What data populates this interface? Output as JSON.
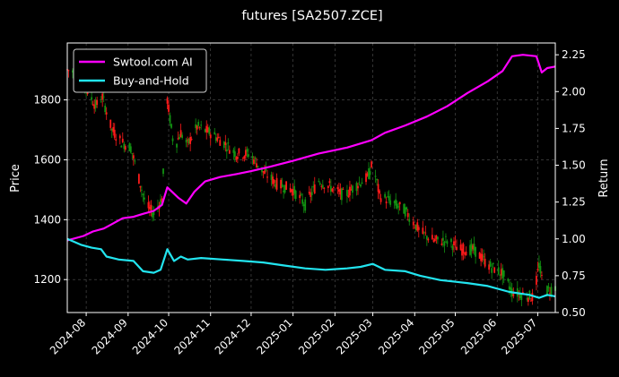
{
  "chart_data": {
    "type": "line",
    "title": "futures [SA2507.ZCE]",
    "xlabel": "",
    "ylabel_left": "Price",
    "ylabel_right": "Return",
    "x_range": [
      "2024-07-18",
      "2025-07-14"
    ],
    "x_ticks": [
      "2024-08",
      "2024-09",
      "2024-10",
      "2024-11",
      "2024-12",
      "2025-01",
      "2025-02",
      "2025-03",
      "2025-04",
      "2025-05",
      "2025-06",
      "2025-07"
    ],
    "ylim_left": [
      1090,
      1990
    ],
    "yticks_left": [
      1200,
      1400,
      1600,
      1800
    ],
    "ylim_right": [
      0.5,
      2.33
    ],
    "yticks_right": [
      0.5,
      0.75,
      1.0,
      1.25,
      1.5,
      1.75,
      2.0,
      2.25
    ],
    "grid": true,
    "legend_position": "top-left",
    "colors": {
      "strategy": "#ff00ff",
      "buyhold": "#22e5f0",
      "candle_up": "#ff1a1a",
      "candle_down": "#129312",
      "grid": "#555555",
      "background": "#000000"
    },
    "series": [
      {
        "name": "Swtool.com AI",
        "axis": "right",
        "points": [
          [
            "2024-07-18",
            0.99
          ],
          [
            "2024-07-30",
            1.02
          ],
          [
            "2024-08-06",
            1.05
          ],
          [
            "2024-08-14",
            1.07
          ],
          [
            "2024-08-20",
            1.1
          ],
          [
            "2024-08-28",
            1.14
          ],
          [
            "2024-09-05",
            1.15
          ],
          [
            "2024-09-12",
            1.17
          ],
          [
            "2024-09-20",
            1.19
          ],
          [
            "2024-09-26",
            1.23
          ],
          [
            "2024-09-30",
            1.35
          ],
          [
            "2024-10-08",
            1.28
          ],
          [
            "2024-10-14",
            1.24
          ],
          [
            "2024-10-20",
            1.32
          ],
          [
            "2024-10-28",
            1.39
          ],
          [
            "2024-11-08",
            1.42
          ],
          [
            "2024-11-20",
            1.44
          ],
          [
            "2024-12-01",
            1.46
          ],
          [
            "2024-12-15",
            1.49
          ],
          [
            "2025-01-01",
            1.53
          ],
          [
            "2025-01-20",
            1.58
          ],
          [
            "2025-02-10",
            1.62
          ],
          [
            "2025-02-28",
            1.67
          ],
          [
            "2025-03-10",
            1.72
          ],
          [
            "2025-03-25",
            1.77
          ],
          [
            "2025-04-10",
            1.83
          ],
          [
            "2025-04-25",
            1.9
          ],
          [
            "2025-05-10",
            1.99
          ],
          [
            "2025-05-25",
            2.07
          ],
          [
            "2025-06-05",
            2.14
          ],
          [
            "2025-06-12",
            2.24
          ],
          [
            "2025-06-20",
            2.25
          ],
          [
            "2025-06-30",
            2.24
          ],
          [
            "2025-07-04",
            2.13
          ],
          [
            "2025-07-08",
            2.16
          ],
          [
            "2025-07-14",
            2.17
          ]
        ]
      },
      {
        "name": "Buy-and-Hold",
        "axis": "right",
        "points": [
          [
            "2024-07-18",
            1.0
          ],
          [
            "2024-07-28",
            0.96
          ],
          [
            "2024-08-05",
            0.94
          ],
          [
            "2024-08-12",
            0.93
          ],
          [
            "2024-08-16",
            0.88
          ],
          [
            "2024-08-25",
            0.86
          ],
          [
            "2024-09-05",
            0.85
          ],
          [
            "2024-09-12",
            0.78
          ],
          [
            "2024-09-20",
            0.77
          ],
          [
            "2024-09-25",
            0.79
          ],
          [
            "2024-09-30",
            0.93
          ],
          [
            "2024-10-05",
            0.85
          ],
          [
            "2024-10-10",
            0.88
          ],
          [
            "2024-10-15",
            0.86
          ],
          [
            "2024-10-25",
            0.87
          ],
          [
            "2024-11-10",
            0.86
          ],
          [
            "2024-11-25",
            0.85
          ],
          [
            "2024-12-10",
            0.84
          ],
          [
            "2024-12-25",
            0.82
          ],
          [
            "2025-01-10",
            0.8
          ],
          [
            "2025-01-25",
            0.79
          ],
          [
            "2025-02-10",
            0.8
          ],
          [
            "2025-02-20",
            0.81
          ],
          [
            "2025-03-01",
            0.83
          ],
          [
            "2025-03-10",
            0.79
          ],
          [
            "2025-03-25",
            0.78
          ],
          [
            "2025-04-05",
            0.75
          ],
          [
            "2025-04-20",
            0.72
          ],
          [
            "2025-05-10",
            0.7
          ],
          [
            "2025-05-25",
            0.68
          ],
          [
            "2025-06-10",
            0.64
          ],
          [
            "2025-06-25",
            0.62
          ],
          [
            "2025-07-02",
            0.6
          ],
          [
            "2025-07-08",
            0.62
          ],
          [
            "2025-07-14",
            0.61
          ]
        ]
      },
      {
        "name": "Price",
        "axis": "left",
        "type": "candlestick",
        "points": [
          [
            "2024-07-18",
            1900
          ],
          [
            "2024-07-26",
            1890
          ],
          [
            "2024-08-02",
            1830
          ],
          [
            "2024-08-08",
            1780
          ],
          [
            "2024-08-13",
            1810
          ],
          [
            "2024-08-20",
            1700
          ],
          [
            "2024-08-27",
            1660
          ],
          [
            "2024-09-03",
            1640
          ],
          [
            "2024-09-10",
            1520
          ],
          [
            "2024-09-14",
            1450
          ],
          [
            "2024-09-20",
            1420
          ],
          [
            "2024-09-26",
            1470
          ],
          [
            "2024-09-30",
            1800
          ],
          [
            "2024-10-05",
            1640
          ],
          [
            "2024-10-10",
            1690
          ],
          [
            "2024-10-15",
            1650
          ],
          [
            "2024-10-22",
            1710
          ],
          [
            "2024-11-01",
            1690
          ],
          [
            "2024-11-10",
            1660
          ],
          [
            "2024-11-20",
            1620
          ],
          [
            "2024-11-30",
            1620
          ],
          [
            "2024-12-10",
            1560
          ],
          [
            "2024-12-20",
            1520
          ],
          [
            "2025-01-01",
            1500
          ],
          [
            "2025-01-10",
            1450
          ],
          [
            "2025-01-20",
            1530
          ],
          [
            "2025-01-28",
            1510
          ],
          [
            "2025-02-08",
            1480
          ],
          [
            "2025-02-18",
            1520
          ],
          [
            "2025-02-25",
            1540
          ],
          [
            "2025-03-01",
            1590
          ],
          [
            "2025-03-06",
            1480
          ],
          [
            "2025-03-15",
            1460
          ],
          [
            "2025-03-25",
            1430
          ],
          [
            "2025-04-05",
            1360
          ],
          [
            "2025-04-15",
            1330
          ],
          [
            "2025-04-25",
            1330
          ],
          [
            "2025-05-05",
            1300
          ],
          [
            "2025-05-15",
            1300
          ],
          [
            "2025-05-25",
            1250
          ],
          [
            "2025-06-05",
            1220
          ],
          [
            "2025-06-12",
            1160
          ],
          [
            "2025-06-20",
            1150
          ],
          [
            "2025-06-28",
            1140
          ],
          [
            "2025-07-02",
            1250
          ],
          [
            "2025-07-06",
            1160
          ],
          [
            "2025-07-14",
            1175
          ]
        ]
      }
    ]
  }
}
